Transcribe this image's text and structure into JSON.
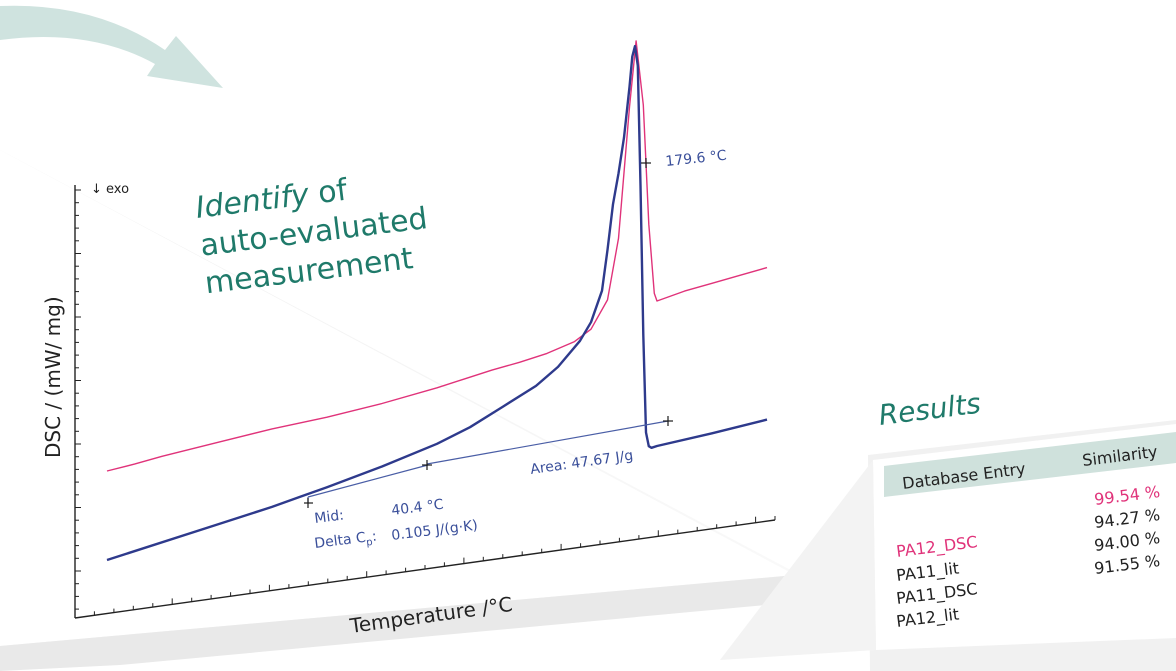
{
  "chart_data": {
    "type": "line",
    "ylabel": "DSC / (mW/ mg)",
    "xlabel": "Temperature /°C",
    "direction_label": "↓ exo",
    "colors": {
      "measured": "#2e3a8c",
      "reference": "#e0337a",
      "annotation": "#3a4f9a",
      "baseline": "#4a5ea6"
    },
    "series": [
      {
        "color_key": "reference",
        "points": [
          [
            0,
            89
          ],
          [
            0.05,
            92
          ],
          [
            0.1,
            96
          ],
          [
            0.2,
            102
          ],
          [
            0.3,
            108
          ],
          [
            0.4,
            112
          ],
          [
            0.5,
            118
          ],
          [
            0.6,
            126
          ],
          [
            0.65,
            131
          ],
          [
            0.7,
            136
          ],
          [
            0.75,
            140
          ],
          [
            0.8,
            145
          ],
          [
            0.85,
            153
          ],
          [
            0.88,
            163
          ],
          [
            0.91,
            190
          ],
          [
            0.93,
            250
          ],
          [
            0.95,
            380
          ],
          [
            0.962,
            445
          ],
          [
            0.975,
            380
          ],
          [
            0.985,
            260
          ],
          [
            0.995,
            190
          ],
          [
            1.0,
            182
          ],
          [
            1.05,
            188
          ],
          [
            1.1,
            192
          ],
          [
            1.15,
            196
          ],
          [
            1.2,
            200
          ]
        ]
      },
      {
        "color_key": "measured",
        "points": [
          [
            0,
            0
          ],
          [
            0.2,
            20
          ],
          [
            0.3,
            30
          ],
          [
            0.35,
            36
          ],
          [
            0.4,
            42
          ],
          [
            0.5,
            55
          ],
          [
            0.6,
            70
          ],
          [
            0.66,
            82
          ],
          [
            0.72,
            98
          ],
          [
            0.78,
            114
          ],
          [
            0.82,
            130
          ],
          [
            0.86,
            153
          ],
          [
            0.88,
            170
          ],
          [
            0.9,
            200
          ],
          [
            0.91,
            240
          ],
          [
            0.92,
            285
          ],
          [
            0.93,
            315
          ],
          [
            0.94,
            350
          ],
          [
            0.95,
            400
          ],
          [
            0.955,
            430
          ],
          [
            0.96,
            440
          ],
          [
            0.965,
            420
          ],
          [
            0.97,
            300
          ],
          [
            0.975,
            150
          ],
          [
            0.98,
            52
          ],
          [
            0.985,
            38
          ],
          [
            0.99,
            36
          ],
          [
            1.0,
            37
          ],
          [
            1.1,
            42
          ],
          [
            1.2,
            48
          ]
        ]
      }
    ],
    "annotations": {
      "peak_label": "179.6 °C",
      "area_label": "Area: 47.67 J/g",
      "mid_label": "Mid:",
      "mid_value": "40.4 °C",
      "cp_label_main": "Delta C",
      "cp_label_sub": "p",
      "cp_label_after": ":",
      "cp_value": "0.105 J/(g·K)"
    }
  },
  "caption": {
    "identify_word": "Identify",
    "line1_rest": " of",
    "line2": "auto-evaluated",
    "line3": "measurement"
  },
  "results": {
    "title": "Results",
    "header_entry": "Database Entry",
    "header_similarity": "Similarity",
    "entries": [
      "PA12_DSC",
      "PA11_lit",
      "PA11_DSC",
      "PA12_lit"
    ],
    "similarities": [
      "99.54 %",
      "94.27 %",
      "94.00 %",
      "91.55 %"
    ],
    "highlight_color": "#e0337a",
    "header_color": "#cfe1dc"
  },
  "theme": {
    "accent": "#1f7a6a",
    "arrow": "#cfe3df"
  }
}
